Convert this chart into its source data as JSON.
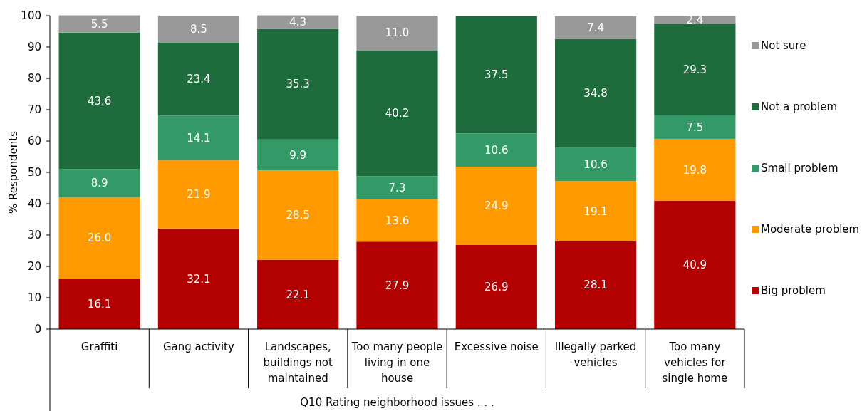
{
  "chart_data": {
    "type": "bar",
    "stacked": true,
    "xlabel": "Q10 Rating neighborhood issues . . .",
    "ylabel": "% Respondents",
    "categories": [
      "Graffiti",
      "Gang activity",
      "Landscapes, buildings not maintained",
      "Too many people living in one house",
      "Excessive noise",
      "Illegally parked vehicles",
      "Too many vehicles for single home"
    ],
    "series": [
      {
        "name": "Big problem",
        "color": "#b30000",
        "values": [
          16.1,
          32.1,
          22.1,
          27.9,
          26.9,
          28.1,
          40.9
        ],
        "value_labels": [
          "16.1",
          "32.1",
          "22.1",
          "27.9",
          "26.9",
          "28.1",
          "40.9"
        ]
      },
      {
        "name": "Moderate problem",
        "color": "#ff9900",
        "values": [
          26.0,
          21.9,
          28.5,
          13.6,
          24.9,
          19.1,
          19.8
        ],
        "value_labels": [
          "26.0",
          "21.9",
          "28.5",
          "13.6",
          "24.9",
          "19.1",
          "19.8"
        ]
      },
      {
        "name": "Small problem",
        "color": "#339966",
        "values": [
          8.9,
          14.1,
          9.9,
          7.3,
          10.6,
          10.6,
          7.5
        ],
        "value_labels": [
          "8.9",
          "14.1",
          "9.9",
          "7.3",
          "10.6",
          "10.6",
          "7.5"
        ]
      },
      {
        "name": "Not a problem",
        "color": "#1e6b3c",
        "values": [
          43.6,
          23.4,
          35.3,
          40.2,
          37.5,
          34.8,
          29.3
        ],
        "value_labels": [
          "43.6",
          "23.4",
          "35.3",
          "40.2",
          "37.5",
          "34.8",
          "29.3"
        ]
      },
      {
        "name": "Not sure",
        "color": "#999999",
        "values": [
          5.5,
          8.5,
          4.3,
          11.0,
          null,
          7.4,
          2.4
        ],
        "value_labels": [
          "5.5",
          "8.5",
          "4.3",
          "11.0",
          null,
          "7.4",
          "2.4"
        ]
      }
    ],
    "ylim": [
      0,
      100
    ],
    "yticks": [
      0,
      10,
      20,
      30,
      40,
      50,
      60,
      70,
      80,
      90,
      100
    ],
    "legend": "right"
  }
}
